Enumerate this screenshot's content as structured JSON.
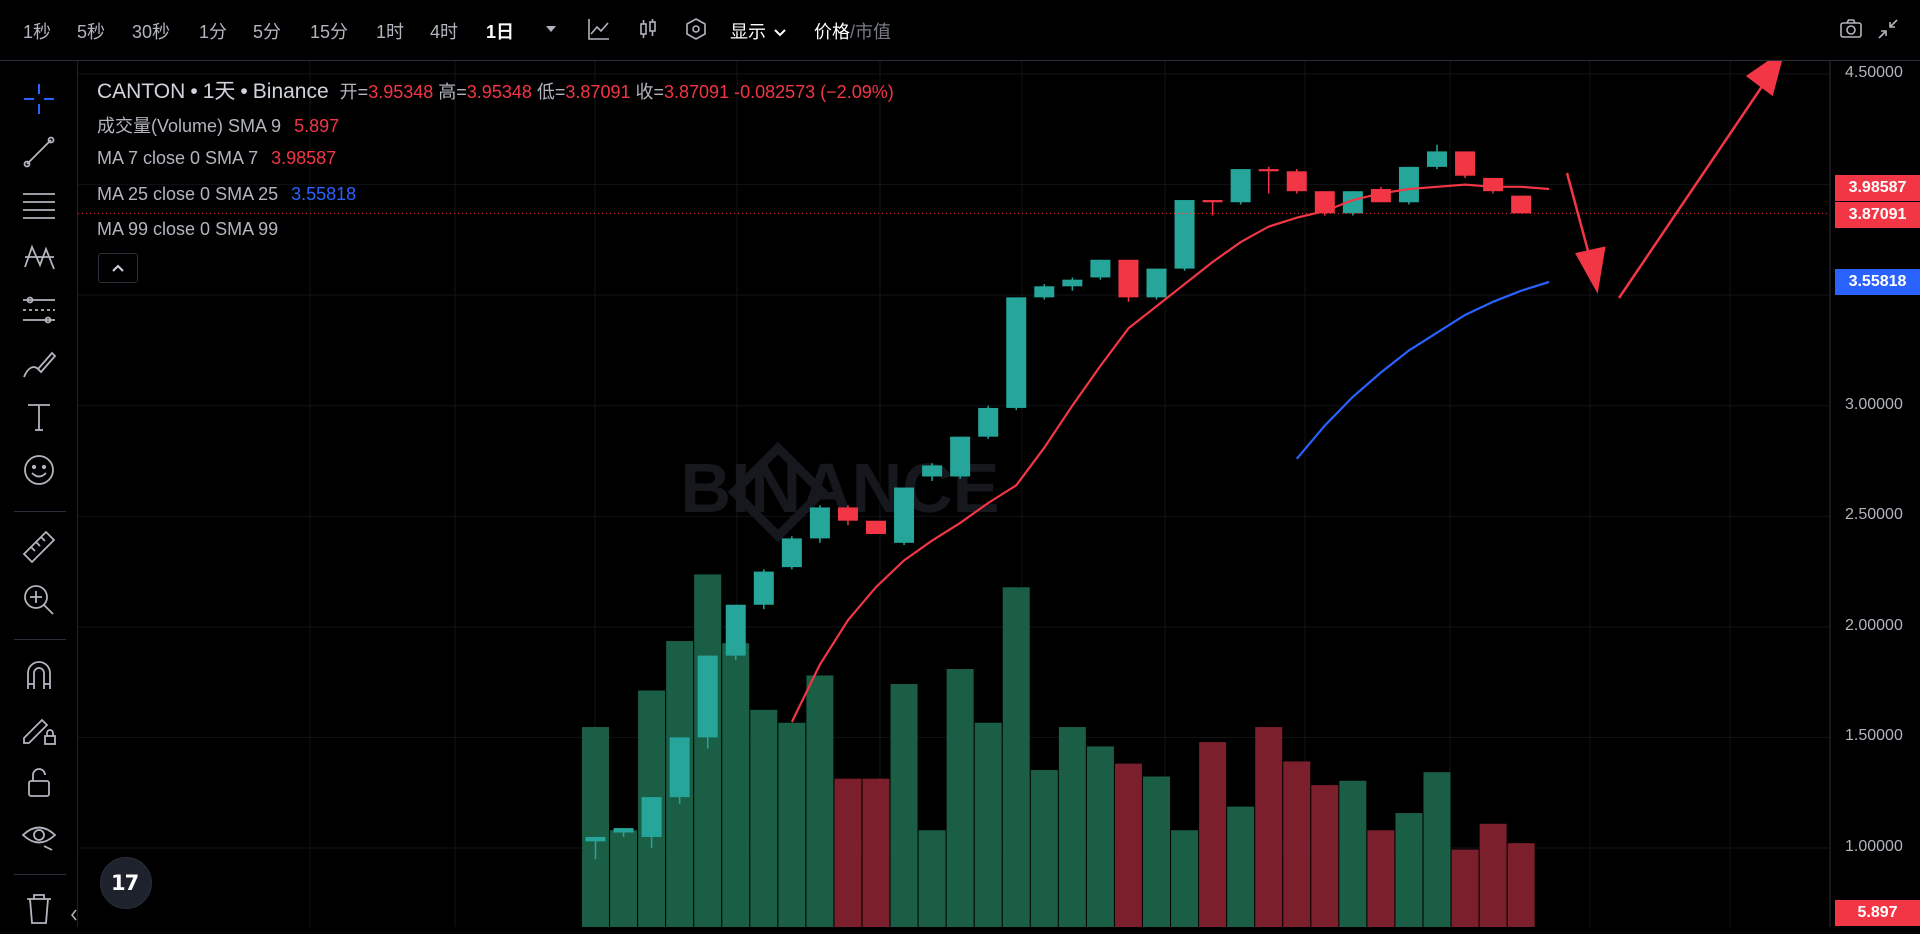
{
  "toolbar": {
    "intervals": [
      "1秒",
      "5秒",
      "30秒",
      "1分",
      "5分",
      "15分",
      "1时",
      "4时",
      "1日"
    ],
    "active_interval": "1日",
    "display_label": "显示",
    "price_label": "价格",
    "sep": "/",
    "marketcap_label": "市值"
  },
  "legend": {
    "symbol": "CANTON",
    "interval": "1天",
    "exchange": "Binance",
    "dot": "•",
    "open_label": "开=",
    "open": "3.95348",
    "high_label": "高=",
    "high": "3.95348",
    "low_label": "低=",
    "low": "3.87091",
    "close_label": "收=",
    "close": "3.87091",
    "change": "-0.082573 (−2.09%)",
    "volume_label": "成交量(Volume) SMA 9",
    "volume_value": "5.897",
    "ma7_label": "MA 7 close 0 SMA 7",
    "ma7_value": "3.98587",
    "ma25_label": "MA 25 close 0 SMA 25",
    "ma25_value": "3.55818",
    "ma99_label": "MA 99 close 0 SMA 99"
  },
  "watermark": "BINANCE",
  "tv_logo": "17",
  "price_tags": {
    "ma7": "3.98587",
    "last": "3.87091",
    "ma25": "3.55818",
    "volume": "5.897"
  },
  "colors": {
    "up": "#26a69a",
    "down": "#f23645",
    "ma7": "#f23645",
    "ma25": "#2962ff",
    "annotation": "#f23645"
  },
  "chart_data": {
    "type": "candlestick",
    "y_axis_labels": [
      "4.50000",
      "3.00000",
      "2.50000",
      "2.00000",
      "1.50000",
      "1.00000"
    ],
    "ylim": [
      0.85,
      4.55
    ],
    "candles": [
      {
        "o": 1.03,
        "h": 1.05,
        "l": 0.95,
        "c": 1.05,
        "v": 0.93
      },
      {
        "o": 1.07,
        "h": 1.09,
        "l": 1.05,
        "c": 1.09,
        "v": 0.45
      },
      {
        "o": 1.05,
        "h": 1.22,
        "l": 1.0,
        "c": 1.23,
        "v": 1.1
      },
      {
        "o": 1.23,
        "h": 1.5,
        "l": 1.2,
        "c": 1.5,
        "v": 1.33
      },
      {
        "o": 1.5,
        "h": 1.87,
        "l": 1.45,
        "c": 1.87,
        "v": 1.64
      },
      {
        "o": 1.87,
        "h": 2.1,
        "l": 1.85,
        "c": 2.1,
        "v": 1.32
      },
      {
        "o": 2.1,
        "h": 2.26,
        "l": 2.08,
        "c": 2.25,
        "v": 1.01
      },
      {
        "o": 2.27,
        "h": 2.41,
        "l": 2.26,
        "c": 2.4,
        "v": 0.95
      },
      {
        "o": 2.4,
        "h": 2.55,
        "l": 2.38,
        "c": 2.54,
        "v": 1.17
      },
      {
        "o": 2.54,
        "h": 2.55,
        "l": 2.46,
        "c": 2.48,
        "v": 0.69
      },
      {
        "o": 2.48,
        "h": 2.48,
        "l": 2.43,
        "c": 2.42,
        "v": 0.69
      },
      {
        "o": 2.38,
        "h": 2.63,
        "l": 2.37,
        "c": 2.63,
        "v": 1.13
      },
      {
        "o": 2.68,
        "h": 2.74,
        "l": 2.66,
        "c": 2.73,
        "v": 0.45
      },
      {
        "o": 2.68,
        "h": 2.86,
        "l": 2.67,
        "c": 2.86,
        "v": 1.2
      },
      {
        "o": 2.86,
        "h": 3.0,
        "l": 2.85,
        "c": 2.99,
        "v": 0.95
      },
      {
        "o": 2.99,
        "h": 3.49,
        "l": 2.98,
        "c": 3.49,
        "v": 1.58
      },
      {
        "o": 3.49,
        "h": 3.55,
        "l": 3.48,
        "c": 3.54,
        "v": 0.73
      },
      {
        "o": 3.54,
        "h": 3.58,
        "l": 3.52,
        "c": 3.57,
        "v": 0.93
      },
      {
        "o": 3.58,
        "h": 3.66,
        "l": 3.57,
        "c": 3.66,
        "v": 0.84
      },
      {
        "o": 3.66,
        "h": 3.66,
        "l": 3.47,
        "c": 3.49,
        "v": 0.76
      },
      {
        "o": 3.49,
        "h": 3.62,
        "l": 3.48,
        "c": 3.62,
        "v": 0.7
      },
      {
        "o": 3.62,
        "h": 3.93,
        "l": 3.61,
        "c": 3.93,
        "v": 0.45
      },
      {
        "o": 3.93,
        "h": 3.93,
        "l": 3.86,
        "c": 3.92,
        "v": 0.86
      },
      {
        "o": 3.92,
        "h": 4.07,
        "l": 3.91,
        "c": 4.07,
        "v": 0.56
      },
      {
        "o": 4.07,
        "h": 4.08,
        "l": 3.96,
        "c": 4.06,
        "v": 0.93
      },
      {
        "o": 4.06,
        "h": 4.07,
        "l": 3.96,
        "c": 3.97,
        "v": 0.77
      },
      {
        "o": 3.97,
        "h": 3.97,
        "l": 3.86,
        "c": 3.87,
        "v": 0.66
      },
      {
        "o": 3.87,
        "h": 3.97,
        "l": 3.86,
        "c": 3.97,
        "v": 0.68
      },
      {
        "o": 3.98,
        "h": 3.99,
        "l": 3.92,
        "c": 3.92,
        "v": 0.45
      },
      {
        "o": 3.92,
        "h": 4.08,
        "l": 3.91,
        "c": 4.08,
        "v": 0.53
      },
      {
        "o": 4.08,
        "h": 4.18,
        "l": 4.07,
        "c": 4.15,
        "v": 0.72
      },
      {
        "o": 4.15,
        "h": 4.15,
        "l": 4.03,
        "c": 4.04,
        "v": 0.36
      },
      {
        "o": 4.03,
        "h": 4.03,
        "l": 3.96,
        "c": 3.97,
        "v": 0.48
      },
      {
        "o": 3.95,
        "h": 3.95,
        "l": 3.87,
        "c": 3.87,
        "v": 0.39
      }
    ],
    "volume_range": [
      0,
      1.86
    ],
    "ma7": [
      null,
      null,
      null,
      null,
      null,
      null,
      1.57,
      1.83,
      2.03,
      2.18,
      2.3,
      2.39,
      2.47,
      2.56,
      2.64,
      2.81,
      3.0,
      3.18,
      3.35,
      3.45,
      3.55,
      3.65,
      3.74,
      3.81,
      3.85,
      3.88,
      3.93,
      3.96,
      3.98,
      3.99,
      4.0,
      3.99,
      3.99,
      3.98
    ],
    "ma25": [
      null,
      null,
      null,
      null,
      null,
      null,
      null,
      null,
      null,
      null,
      null,
      null,
      null,
      null,
      null,
      null,
      null,
      null,
      null,
      null,
      null,
      null,
      null,
      null,
      2.76,
      2.91,
      3.04,
      3.15,
      3.25,
      3.33,
      3.41,
      3.47,
      3.52,
      3.56
    ]
  }
}
